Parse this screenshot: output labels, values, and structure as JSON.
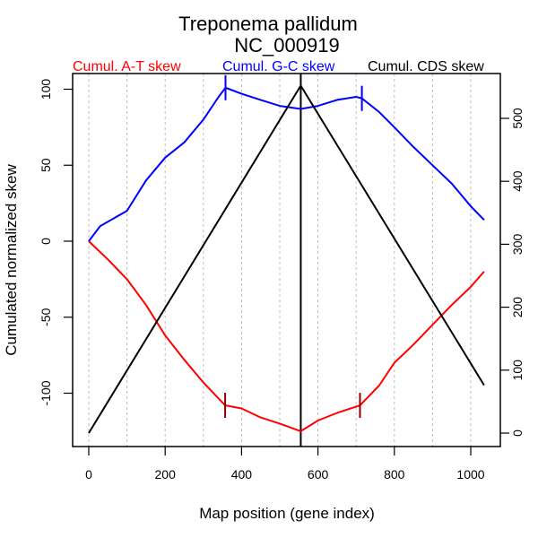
{
  "chart_data": {
    "type": "line",
    "title": "Treponema pallidum",
    "subtitle": "NC_000919",
    "xlabel": "Map position (gene index)",
    "ylabel": "Cumulated normalized skew",
    "xlim": [
      0,
      1035
    ],
    "ylim_left": [
      -125,
      101
    ],
    "ylim_right": [
      0,
      552
    ],
    "x_ticks": [
      0,
      200,
      400,
      600,
      800,
      1000
    ],
    "x_tick_labels": [
      "0",
      "200",
      "400",
      "600",
      "800",
      "1000"
    ],
    "y_left_ticks": [
      -100,
      -50,
      0,
      50,
      100
    ],
    "y_left_tick_labels": [
      "-100",
      "-50",
      "0",
      "50",
      "100"
    ],
    "y_right_ticks": [
      0,
      100,
      200,
      300,
      400,
      500
    ],
    "y_right_tick_labels": [
      "0",
      "100",
      "200",
      "300",
      "400",
      "500"
    ],
    "grid_x": [
      0,
      100,
      200,
      300,
      400,
      500,
      600,
      700,
      800,
      900,
      1000
    ],
    "legend_placement": "top",
    "series": [
      {
        "name": "Cumul. A-T skew",
        "color": "#ff0000",
        "axis": "left",
        "x": [
          0,
          50,
          100,
          150,
          200,
          250,
          300,
          357,
          400,
          450,
          500,
          555,
          600,
          650,
          710,
          760,
          800,
          850,
          900,
          950,
          1000,
          1035
        ],
        "values": [
          0,
          -12,
          -25,
          -42,
          -62,
          -78,
          -93,
          -108,
          -110,
          -116,
          -120,
          -125,
          -118,
          -113,
          -108,
          -95,
          -80,
          -68,
          -55,
          -42,
          -30,
          -20
        ],
        "markers": [
          {
            "x": 357,
            "y": -108
          },
          {
            "x": 710,
            "y": -108
          }
        ],
        "marker_color": "#8b0000"
      },
      {
        "name": "Cumul. G-C skew",
        "color": "#0000ff",
        "axis": "left",
        "x": [
          0,
          30,
          100,
          150,
          200,
          250,
          300,
          340,
          358,
          400,
          450,
          500,
          555,
          600,
          650,
          700,
          715,
          760,
          800,
          850,
          900,
          950,
          1000,
          1035
        ],
        "values": [
          0,
          10,
          20,
          40,
          55,
          65,
          80,
          95,
          101,
          97,
          93,
          89,
          87,
          89,
          93,
          95,
          94,
          85,
          75,
          62,
          50,
          38,
          23,
          14
        ],
        "markers": [
          {
            "x": 358,
            "y": 101
          },
          {
            "x": 715,
            "y": 94
          }
        ],
        "marker_color": "#0000ff"
      },
      {
        "name": "Cumul. CDS skew",
        "color": "#000000",
        "axis": "right",
        "x": [
          0,
          555,
          1035
        ],
        "values": [
          0,
          552,
          76
        ]
      }
    ],
    "vertical_line": {
      "x": 555,
      "color": "#000000"
    }
  }
}
